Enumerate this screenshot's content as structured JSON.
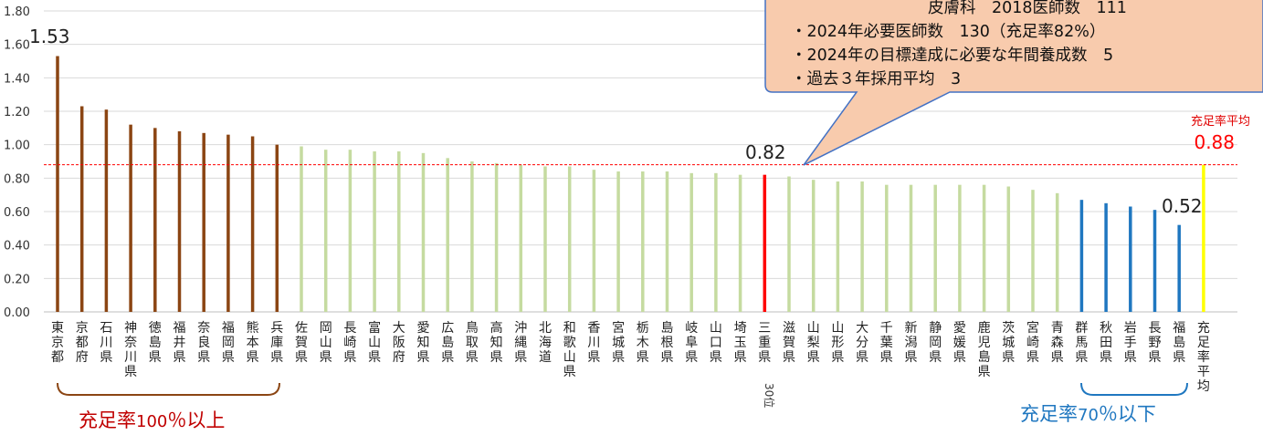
{
  "chart_data": {
    "type": "bar",
    "ylim": [
      0,
      1.8
    ],
    "yticks": [
      "0.00",
      "0.20",
      "0.40",
      "0.60",
      "0.80",
      "1.00",
      "1.20",
      "1.40",
      "1.60",
      "1.80"
    ],
    "grid": true,
    "categories": [
      "東京都",
      "京都府",
      "石川県",
      "神奈川県",
      "徳島県",
      "福井県",
      "奈良県",
      "福岡県",
      "熊本県",
      "兵庫県",
      "佐賀県",
      "岡山県",
      "長崎県",
      "富山県",
      "大阪府",
      "愛知県",
      "広島県",
      "鳥取県",
      "高知県",
      "沖縄県",
      "北海道",
      "和歌山県",
      "香川県",
      "宮城県",
      "栃木県",
      "島根県",
      "岐阜県",
      "山口県",
      "埼玉県",
      "三重県",
      "滋賀県",
      "山梨県",
      "山形県",
      "大分県",
      "千葉県",
      "新潟県",
      "静岡県",
      "愛媛県",
      "鹿児島県",
      "茨城県",
      "宮崎県",
      "青森県",
      "群馬県",
      "秋田県",
      "岩手県",
      "長野県",
      "福島県",
      "充足率平均"
    ],
    "values": [
      1.53,
      1.23,
      1.21,
      1.12,
      1.1,
      1.08,
      1.07,
      1.06,
      1.05,
      1.0,
      0.99,
      0.97,
      0.97,
      0.96,
      0.96,
      0.95,
      0.92,
      0.9,
      0.89,
      0.88,
      0.87,
      0.87,
      0.85,
      0.84,
      0.84,
      0.84,
      0.83,
      0.83,
      0.82,
      0.82,
      0.81,
      0.79,
      0.78,
      0.78,
      0.76,
      0.76,
      0.76,
      0.76,
      0.76,
      0.75,
      0.73,
      0.71,
      0.67,
      0.65,
      0.63,
      0.61,
      0.52,
      0.88
    ],
    "bar_colors": {
      "above_100": "#8B4513",
      "middle": "#C5DBA0",
      "highlight": "#FF0000",
      "below_70": "#1F77C0",
      "average": "#FFFF00"
    },
    "average_line": {
      "value": 0.88,
      "color": "#FF0000"
    },
    "data_labels": {
      "first": "1.53",
      "highlight": "0.82",
      "low": "0.52",
      "average": "0.88"
    },
    "average_caption": "充足率平均",
    "rank_note": "30位",
    "group_above": {
      "prefix": "充足率",
      "num": "100",
      "suffix": "％以上"
    },
    "group_below": {
      "prefix": "充足率",
      "num": "70",
      "suffix": "％以下"
    }
  },
  "callout": {
    "lines": [
      "皮膚科　2018医師数　111",
      "・2024年必要医師数　130（充足率82%）",
      "・2024年の目標達成に必要な年間養成数　5",
      "・過去３年採用平均　3"
    ],
    "fill": "#F8CBAD",
    "stroke": "#4472C4"
  }
}
